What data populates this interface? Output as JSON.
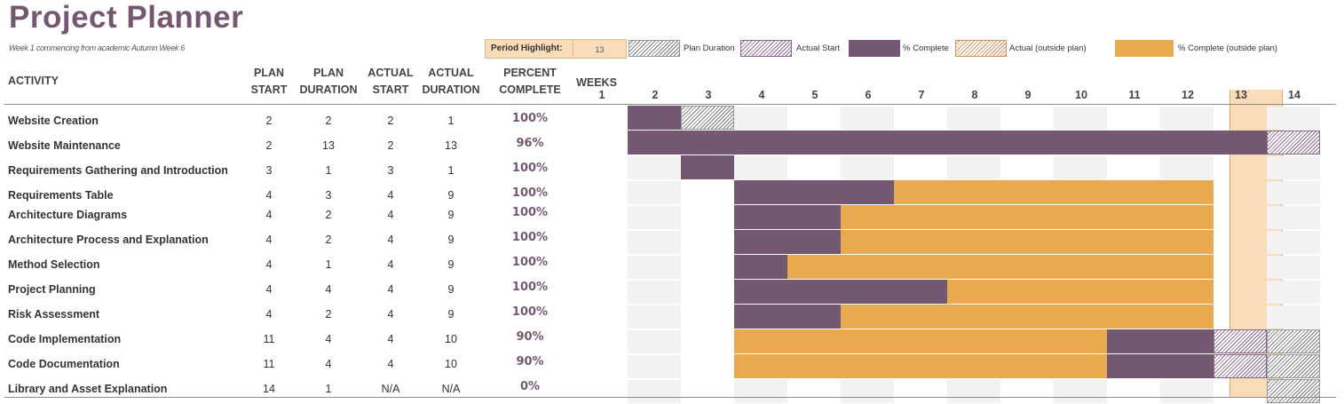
{
  "title": "Project Planner",
  "subtitle": "Week 1 commencing from academic Autumn Week 6",
  "period_highlight": {
    "label": "Period Highlight:",
    "value": "13"
  },
  "legend": {
    "plan_duration": "Plan Duration",
    "actual_start": "Actual Start",
    "percent_complete": "% Complete",
    "actual_outside": "Actual (outside plan)",
    "percent_complete_outside": "% Complete (outside plan)"
  },
  "headers": {
    "activity": "ACTIVITY",
    "plan_start_1": "PLAN",
    "plan_start_2": "START",
    "plan_duration_1": "PLAN",
    "plan_duration_2": "DURATION",
    "actual_start_1": "ACTUAL",
    "actual_start_2": "START",
    "actual_duration_1": "ACTUAL",
    "actual_duration_2": "DURATION",
    "percent_1": "PERCENT",
    "percent_2": "COMPLETE",
    "weeks": "WEEKS"
  },
  "weeks": [
    "1",
    "2",
    "3",
    "4",
    "5",
    "6",
    "7",
    "8",
    "9",
    "10",
    "11",
    "12",
    "13",
    "14"
  ],
  "highlight_week": 13,
  "colors": {
    "complete": "#745872",
    "outside": "#e8a94f",
    "highlight": "#f9dcb8"
  },
  "activities": [
    {
      "name": "Website Creation",
      "plan_start": "2",
      "plan_duration": "2",
      "actual_start": "2",
      "actual_duration": "1",
      "percent": "100%"
    },
    {
      "name": "Website Maintenance",
      "plan_start": "2",
      "plan_duration": "13",
      "actual_start": "2",
      "actual_duration": "13",
      "percent": "96%"
    },
    {
      "name": "Requirements Gathering and Introduction",
      "plan_start": "3",
      "plan_duration": "1",
      "actual_start": "3",
      "actual_duration": "1",
      "percent": "100%"
    },
    {
      "name": "Requirements Table",
      "plan_start": "4",
      "plan_duration": "3",
      "actual_start": "4",
      "actual_duration": "9",
      "percent": "100%"
    },
    {
      "name": "Architecture Diagrams",
      "plan_start": "4",
      "plan_duration": "2",
      "actual_start": "4",
      "actual_duration": "9",
      "percent": "100%"
    },
    {
      "name": "Architecture Process and Explanation",
      "plan_start": "4",
      "plan_duration": "2",
      "actual_start": "4",
      "actual_duration": "9",
      "percent": "100%"
    },
    {
      "name": "Method Selection",
      "plan_start": "4",
      "plan_duration": "1",
      "actual_start": "4",
      "actual_duration": "9",
      "percent": "100%"
    },
    {
      "name": "Project Planning",
      "plan_start": "4",
      "plan_duration": "4",
      "actual_start": "4",
      "actual_duration": "9",
      "percent": "100%"
    },
    {
      "name": "Risk Assessment",
      "plan_start": "4",
      "plan_duration": "2",
      "actual_start": "4",
      "actual_duration": "9",
      "percent": "100%"
    },
    {
      "name": "Code Implementation",
      "plan_start": "11",
      "plan_duration": "4",
      "actual_start": "4",
      "actual_duration": "10",
      "percent": "90%"
    },
    {
      "name": "Code Documentation",
      "plan_start": "11",
      "plan_duration": "4",
      "actual_start": "4",
      "actual_duration": "10",
      "percent": "90%"
    },
    {
      "name": "Library and Asset Explanation",
      "plan_start": "14",
      "plan_duration": "1",
      "actual_start": "N/A",
      "actual_duration": "N/A",
      "percent": "0%"
    }
  ]
}
